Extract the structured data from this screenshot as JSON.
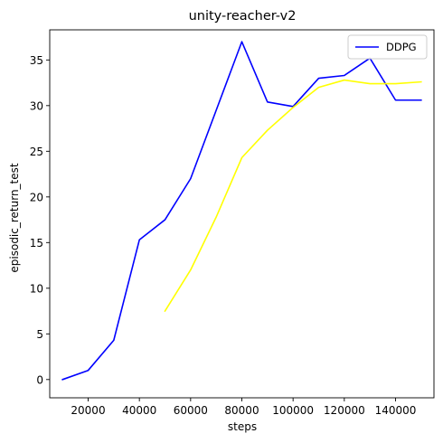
{
  "chart_data": {
    "type": "line",
    "title": "unity-reacher-v2",
    "xlabel": "steps",
    "ylabel": "episodic_return_test",
    "xlim": [
      5000,
      155000
    ],
    "ylim": [
      -2,
      38.3
    ],
    "xticks": [
      20000,
      40000,
      60000,
      80000,
      100000,
      120000,
      140000
    ],
    "yticks": [
      0,
      5,
      10,
      15,
      20,
      25,
      30,
      35
    ],
    "grid": false,
    "legend": {
      "placement": "top-right",
      "entries": [
        "DDPG"
      ]
    },
    "series": [
      {
        "name": "DDPG",
        "color": "#0000ff",
        "x": [
          10000,
          20000,
          30000,
          40000,
          50000,
          60000,
          70000,
          80000,
          90000,
          100000,
          110000,
          120000,
          130000,
          140000,
          150000
        ],
        "y": [
          0.0,
          1.0,
          4.3,
          15.3,
          17.5,
          22.0,
          29.5,
          37.0,
          30.4,
          29.9,
          33.0,
          33.3,
          35.2,
          30.6,
          30.6
        ]
      },
      {
        "color": "#ffff00",
        "x": [
          50000,
          60000,
          70000,
          80000,
          90000,
          100000,
          110000,
          120000,
          130000,
          140000,
          150000
        ],
        "y": [
          7.5,
          12.0,
          17.8,
          24.3,
          27.3,
          29.8,
          32.0,
          32.8,
          32.4,
          32.4,
          32.6
        ]
      }
    ]
  }
}
